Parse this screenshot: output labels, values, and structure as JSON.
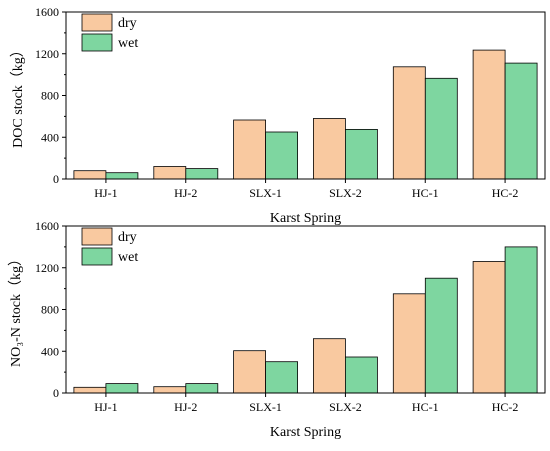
{
  "chart_data": [
    {
      "type": "bar",
      "categories": [
        "HJ-1",
        "HJ-2",
        "SLX-1",
        "SLX-2",
        "HC-1",
        "HC-2"
      ],
      "series": [
        {
          "name": "dry",
          "values": [
            80,
            120,
            565,
            580,
            1075,
            1235
          ],
          "color": "#f9c9a0"
        },
        {
          "name": "wet",
          "values": [
            60,
            100,
            450,
            475,
            965,
            1110
          ],
          "color": "#7ed6a0"
        }
      ],
      "xlabel": "Karst Spring",
      "ylabel": "DOC stock（kg）",
      "ylim": [
        0,
        1600
      ],
      "yticks": [
        "0",
        "400",
        "800",
        "1200",
        "1600"
      ],
      "legend": "top-left",
      "grid": false
    },
    {
      "type": "bar",
      "categories": [
        "HJ-1",
        "HJ-2",
        "SLX-1",
        "SLX-2",
        "HC-1",
        "HC-2"
      ],
      "series": [
        {
          "name": "dry",
          "values": [
            55,
            60,
            405,
            520,
            950,
            1260
          ],
          "color": "#f9c9a0"
        },
        {
          "name": "wet",
          "values": [
            90,
            90,
            300,
            345,
            1100,
            1400
          ],
          "color": "#7ed6a0"
        }
      ],
      "xlabel": "Karst Spring",
      "ylabel": "NO₃-N stock（kg）",
      "ylim": [
        0,
        1600
      ],
      "yticks": [
        "0",
        "400",
        "800",
        "1200",
        "1600"
      ],
      "legend": "top-left",
      "grid": false
    }
  ]
}
